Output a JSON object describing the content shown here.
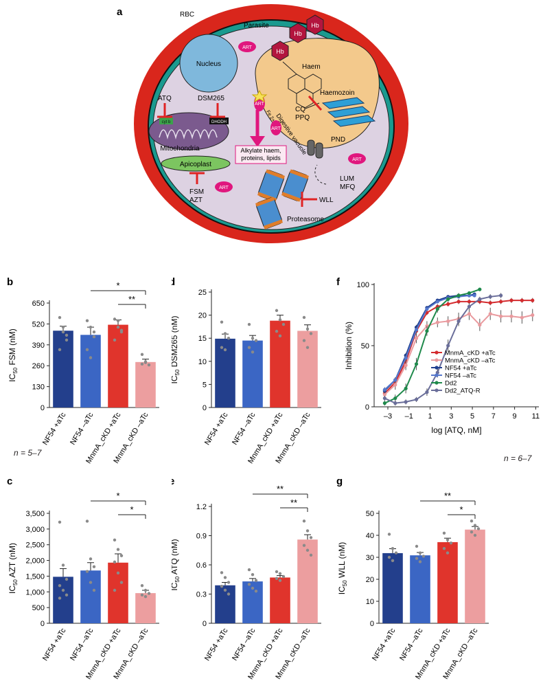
{
  "schematic": {
    "panel": "a",
    "labels": {
      "rbc": "RBC",
      "parasite": "Parasite",
      "hb1": "Hb",
      "hb2": "Hb",
      "hb3": "Hb",
      "nucleus": "Nucleus",
      "haem": "Haem",
      "haemozoin": "Haemozoin",
      "digestive_vacuole": "Digestive vacuole",
      "cq_ppq": [
        "CQ",
        "PPQ"
      ],
      "pnd": "PND",
      "lum_mfq": [
        "LUM",
        "MFQ"
      ],
      "atq": "ATQ",
      "dsm265": "DSM265",
      "cytb": "cyt b",
      "dhodh": "DHODH",
      "mitochondria": "Mitochondria",
      "apicoplast": "Apicoplast",
      "fsm_azt": [
        "FSM",
        "AZT"
      ],
      "alkylate": [
        "Alkylate haem,",
        "proteins, lipids"
      ],
      "fe2": "Fe 2+",
      "art": "ART",
      "wll": "WLL",
      "proteasome": "Proteasome"
    },
    "colors": {
      "rbc_outer": "#d9261c",
      "teal_ring": "#1a9a8f",
      "cytoplasm": "#ddd2e2",
      "vacuole": "#f3c98c",
      "nucleus": "#7fb8dc",
      "mitochondria": "#7b5a8e",
      "apicoplast": "#7cc560",
      "hb": "#b3153e",
      "art": "#e0177e",
      "inhibitor": "#e02424"
    }
  },
  "chart_data": [
    {
      "panel": "b",
      "type": "bar",
      "ylabel_main": "IC",
      "ylabel_sub": "50",
      "ylabel_rest": " FSM (nM)",
      "categories": [
        "NF54 +aTc",
        "NF54 –aTc",
        "MnmA_cKD +aTc",
        "MnmA_cKD –aTc"
      ],
      "values": [
        478,
        452,
        515,
        283
      ],
      "errors": [
        28,
        48,
        30,
        18
      ],
      "yticks": [
        "0",
        "130",
        "260",
        "390",
        "520",
        "650"
      ],
      "ylim": [
        0,
        650
      ],
      "points": [
        [
          560,
          500,
          420,
          360,
          470,
          450
        ],
        [
          540,
          500,
          470,
          360,
          310,
          440
        ],
        [
          550,
          540,
          470,
          420,
          500,
          480
        ],
        [
          330,
          280,
          265,
          270,
          285
        ]
      ],
      "sig": [
        {
          "from": 1,
          "to": 3,
          "label": "*"
        },
        {
          "from": 2,
          "to": 3,
          "label": "**"
        }
      ],
      "note": "n = 5–7"
    },
    {
      "panel": "d",
      "type": "bar",
      "ylabel_main": "IC",
      "ylabel_sub": "50",
      "ylabel_rest": " DSM265 (nM)",
      "categories": [
        "NF54 +aTc",
        "NF54 –aTc",
        "MnmA_cKD +aTc",
        "MnmA_cKD –aTc"
      ],
      "values": [
        14.9,
        14.5,
        18.8,
        16.6
      ],
      "errors": [
        1.0,
        1.1,
        1.2,
        1.3
      ],
      "yticks": [
        "0",
        "5",
        "10",
        "15",
        "20",
        "25"
      ],
      "ylim": [
        0,
        25
      ],
      "points": [
        [
          18.5,
          16,
          15,
          13,
          12.5
        ],
        [
          18,
          15,
          14.5,
          13,
          12
        ],
        [
          21,
          19,
          18,
          16.5,
          15.5
        ],
        [
          19.5,
          17,
          16,
          14.5,
          13
        ]
      ],
      "sig": []
    },
    {
      "panel": "c",
      "type": "bar",
      "ylabel_main": "IC",
      "ylabel_sub": "50",
      "ylabel_rest": " AZT (nM)",
      "categories": [
        "NF54 +aTc",
        "NF54 –aTc",
        "MnmA_cKD +aTc",
        "MnmA_cKD –aTc"
      ],
      "values": [
        1480,
        1680,
        1930,
        960
      ],
      "errors": [
        260,
        250,
        280,
        90
      ],
      "yticks": [
        "0",
        "500",
        "1,000",
        "1,500",
        "2,000",
        "2,500",
        "3,000",
        "3,500"
      ],
      "ylim": [
        0,
        3500
      ],
      "points": [
        [
          3220,
          1850,
          1400,
          1200,
          1050,
          900,
          800
        ],
        [
          3250,
          2050,
          1800,
          1650,
          1300,
          1050
        ],
        [
          2650,
          2350,
          2150,
          1950,
          1600,
          1300,
          1050
        ],
        [
          1200,
          1050,
          950,
          900,
          850
        ]
      ],
      "sig": [
        {
          "from": 1,
          "to": 3,
          "label": "*"
        },
        {
          "from": 2,
          "to": 3,
          "label": "*"
        }
      ]
    },
    {
      "panel": "e",
      "type": "bar",
      "ylabel_main": "IC",
      "ylabel_sub": "50",
      "ylabel_rest": " ATQ (nM)",
      "categories": [
        "NF54 +aTc",
        "NF54 –aTc",
        "MnmA_cKD +aTc",
        "MnmA_cKD –aTc"
      ],
      "values": [
        0.39,
        0.43,
        0.47,
        0.86
      ],
      "errors": [
        0.03,
        0.03,
        0.02,
        0.05
      ],
      "yticks": [
        "0",
        "0.3",
        "0.6",
        "0.9",
        "1.2"
      ],
      "ylim": [
        0,
        1.2
      ],
      "points": [
        [
          0.52,
          0.47,
          0.42,
          0.38,
          0.34,
          0.3
        ],
        [
          0.55,
          0.5,
          0.44,
          0.4,
          0.36,
          0.33
        ],
        [
          0.53,
          0.51,
          0.48,
          0.46,
          0.44
        ],
        [
          1.05,
          0.95,
          0.88,
          0.8,
          0.75,
          0.7
        ]
      ],
      "sig": [
        {
          "from": 1,
          "to": 3,
          "label": "**"
        },
        {
          "from": 2,
          "to": 3,
          "label": "**"
        }
      ]
    },
    {
      "panel": "g",
      "type": "bar",
      "ylabel_main": "IC",
      "ylabel_sub": "50",
      "ylabel_rest": " WLL (nM)",
      "categories": [
        "NF54 +aTc",
        "NF54 –aTc",
        "MnmA_cKD +aTc",
        "MnmA_cKD –aTc"
      ],
      "values": [
        31.9,
        30.9,
        36.9,
        42.6
      ],
      "errors": [
        2.0,
        1.3,
        1.8,
        1.4
      ],
      "yticks": [
        "0",
        "10",
        "20",
        "30",
        "40",
        "50"
      ],
      "ylim": [
        0,
        50
      ],
      "points": [
        [
          40.5,
          34,
          32,
          30,
          28.5
        ],
        [
          35,
          32,
          30.5,
          29.5,
          28
        ],
        [
          41,
          38,
          36.5,
          34,
          32
        ],
        [
          46.5,
          44.5,
          43,
          41.5,
          40
        ]
      ],
      "sig": [
        {
          "from": 1,
          "to": 3,
          "label": "**"
        },
        {
          "from": 2,
          "to": 3,
          "label": "*"
        }
      ]
    },
    {
      "panel": "f",
      "type": "line",
      "xlabel": "log [ATQ, nM]",
      "ylabel": "Inhibition (%)",
      "xticks": [
        "–3",
        "–1",
        "1",
        "3",
        "5",
        "7",
        "9",
        "11"
      ],
      "yticks": [
        "0",
        "50",
        "100"
      ],
      "xlim": [
        -4.3,
        11.3
      ],
      "ylim": [
        0,
        100
      ],
      "note": "n = 6–7",
      "series": [
        {
          "name": "MnmA_cKD +aTc",
          "color": "#d42b2e",
          "x": [
            -3.3,
            -2.3,
            -1.3,
            -0.3,
            0.7,
            1.7,
            2.7,
            3.7,
            4.7,
            5.7,
            6.7,
            7.7,
            8.7,
            9.7,
            10.7
          ],
          "y": [
            11,
            20,
            37,
            62,
            77,
            82,
            84,
            86,
            86,
            86,
            85,
            86,
            87,
            87,
            87
          ],
          "err": [
            2,
            3,
            3,
            3,
            2,
            2,
            2,
            2,
            2,
            2,
            2,
            2,
            2,
            2,
            2
          ]
        },
        {
          "name": "MnmA_cKD –aTc",
          "color": "#e99a9e",
          "x": [
            -3.3,
            -2.3,
            -1.3,
            -0.3,
            0.7,
            1.7,
            2.7,
            3.7,
            4.7,
            5.7,
            6.7,
            7.7,
            8.7,
            9.7,
            10.7
          ],
          "y": [
            10,
            18,
            34,
            56,
            66,
            69,
            70,
            72,
            76,
            67,
            76,
            74,
            74,
            73,
            75
          ],
          "err": [
            3,
            4,
            4,
            4,
            4,
            4,
            4,
            5,
            5,
            5,
            5,
            5,
            5,
            5,
            5
          ]
        },
        {
          "name": "NF54 +aTc",
          "color": "#1f3f8f",
          "x": [
            -3.3,
            -2.3,
            -1.3,
            -0.3,
            0.7,
            1.7,
            2.7,
            3.7,
            4.7,
            5.2
          ],
          "y": [
            13,
            22,
            42,
            65,
            81,
            87,
            90,
            91,
            91,
            92
          ],
          "err": [
            2,
            2,
            2,
            2,
            1,
            1,
            1,
            1,
            1,
            1
          ]
        },
        {
          "name": "NF54 –aTc",
          "color": "#5577cc",
          "x": [
            -3.3,
            -2.3,
            -1.3,
            -0.3,
            0.7,
            1.7,
            2.7,
            3.7,
            4.7,
            5.2
          ],
          "y": [
            14,
            22,
            40,
            63,
            80,
            86,
            89,
            90,
            91,
            91
          ],
          "err": [
            2,
            2,
            2,
            2,
            1,
            1,
            1,
            1,
            1,
            1
          ]
        },
        {
          "name": "Dd2",
          "color": "#1f8a4c",
          "x": [
            -3.3,
            -2.3,
            -1.3,
            -0.3,
            0.7,
            1.7,
            2.7,
            3.7,
            4.7,
            5.7
          ],
          "y": [
            3,
            7,
            15,
            35,
            62,
            80,
            88,
            91,
            93,
            96
          ],
          "err": [
            2,
            3,
            4,
            5,
            4,
            3,
            2,
            2,
            1,
            1
          ]
        },
        {
          "name": "Dd2_ATQ-R",
          "color": "#6a6e9a",
          "x": [
            -3.3,
            -2.3,
            -1.3,
            -0.3,
            0.7,
            1.7,
            2.7,
            3.7,
            4.7,
            5.7,
            6.7,
            7.7
          ],
          "y": [
            7,
            3,
            4,
            6,
            12,
            28,
            50,
            70,
            82,
            88,
            90,
            91
          ],
          "err": [
            2,
            2,
            2,
            2,
            3,
            4,
            5,
            4,
            3,
            2,
            2,
            2
          ]
        }
      ]
    }
  ]
}
